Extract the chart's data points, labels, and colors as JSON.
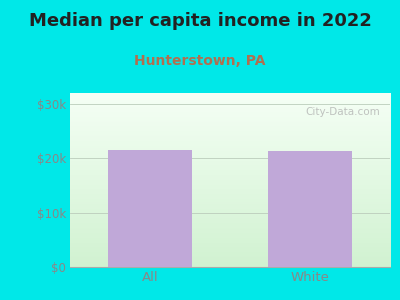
{
  "title": "Median per capita income in 2022",
  "subtitle": "Hunterstown, PA",
  "categories": [
    "All",
    "White"
  ],
  "values": [
    21500,
    21300
  ],
  "bar_color": "#c0a8d8",
  "title_fontsize": 13,
  "subtitle_fontsize": 10,
  "subtitle_color": "#b07050",
  "title_color": "#222222",
  "tick_color": "#888888",
  "background_outer": "#00e8e8",
  "ylim": [
    0,
    32000
  ],
  "yticks": [
    0,
    10000,
    20000,
    30000
  ],
  "ytick_labels": [
    "$0",
    "$10k",
    "$20k",
    "$30k"
  ],
  "watermark": "City-Data.com"
}
